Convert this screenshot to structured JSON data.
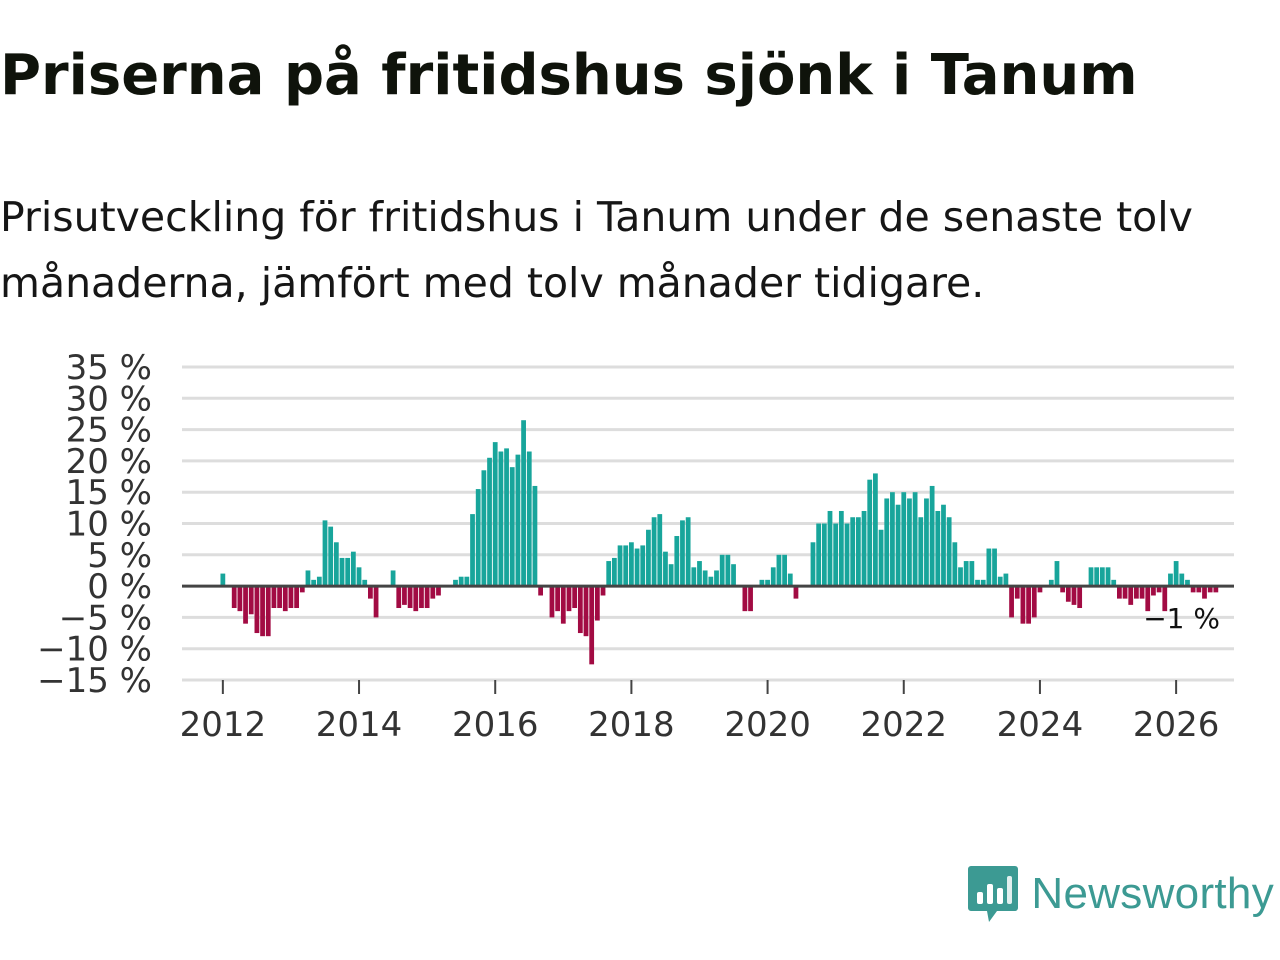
{
  "header": {
    "title": "Priserna på fritidshus sjönk i Tanum",
    "subtitle": "Prisutveckling för fritidshus i Tanum under de senaste tolv månaderna, jämfört med tolv månader tidigare."
  },
  "brand": {
    "name": "Newsworthy",
    "icon": "newsworthy-logo-icon",
    "color": "#3c9a93"
  },
  "colors": {
    "positive": "#18a59b",
    "negative": "#a20b43",
    "grid": "#dddddd",
    "zero": "#444444",
    "text": "#333333"
  },
  "chart_data": {
    "type": "bar",
    "title": "Priserna på fritidshus sjönk i Tanum",
    "xlabel": "",
    "ylabel": "",
    "unit": "%",
    "ylim": [
      -15,
      35
    ],
    "yticks": [
      35,
      30,
      25,
      20,
      15,
      10,
      5,
      0,
      -5,
      -10,
      -15
    ],
    "ytick_labels": [
      "35 %",
      "30 %",
      "25 %",
      "20 %",
      "15 %",
      "10 %",
      "5 %",
      "0 %",
      "−5 %",
      "−10 %",
      "−15 %"
    ],
    "xlim": [
      2011.4,
      2026.85
    ],
    "xticks": [
      2012,
      2014,
      2016,
      2018,
      2020,
      2022,
      2024,
      2026
    ],
    "xtick_labels": [
      "2012",
      "2014",
      "2016",
      "2018",
      "2020",
      "2022",
      "2024",
      "2026"
    ],
    "grid": true,
    "last_value_label": "−1 %",
    "series": [
      {
        "name": "Prisutveckling",
        "start": "2012-01",
        "values": [
          2,
          null,
          -3.5,
          -4,
          -6,
          -4.5,
          -7.5,
          -8,
          -8,
          -3.5,
          -3.5,
          -4,
          -3.5,
          -3.5,
          -1,
          2.5,
          1,
          1.5,
          10.5,
          9.5,
          7,
          4.5,
          4.5,
          5.5,
          3,
          1,
          -2,
          -5,
          null,
          null,
          2.5,
          -3.5,
          -3,
          -3.5,
          -4,
          -3.5,
          -3.5,
          -2,
          -1.5,
          null,
          null,
          1,
          1.5,
          1.5,
          11.5,
          15.5,
          18.5,
          20.5,
          23,
          21.5,
          22,
          19,
          21,
          26.5,
          21.5,
          16,
          -1.5,
          null,
          -5,
          -4,
          -6,
          -4,
          -3.5,
          -7.5,
          -8,
          -12.5,
          -5.5,
          -1.5,
          4,
          4.5,
          6.5,
          6.5,
          7,
          6,
          6.5,
          9,
          11,
          11.5,
          5.5,
          3.5,
          8,
          10.5,
          11,
          3,
          4,
          2.5,
          1.5,
          2.5,
          5,
          5,
          3.5,
          null,
          -4,
          -4,
          null,
          1,
          1,
          3,
          5,
          5,
          2,
          -2,
          null,
          null,
          7,
          10,
          10,
          12,
          10,
          12,
          10,
          11,
          11,
          12,
          17,
          18,
          9,
          14,
          15,
          13,
          15,
          14,
          15,
          11,
          14,
          16,
          12,
          13,
          11,
          7,
          3,
          4,
          4,
          1,
          1,
          6,
          6,
          1.5,
          2,
          -5,
          -2,
          -6,
          -6,
          -5,
          -1,
          null,
          1,
          4,
          -1,
          -2.5,
          -3,
          -3.5,
          null,
          3,
          3,
          3,
          3,
          1,
          -2,
          -2,
          -3,
          -2,
          -2,
          -4,
          -1.5,
          -1,
          -4,
          2,
          4,
          2,
          1,
          -1,
          -1,
          -2,
          -1,
          -1
        ]
      }
    ]
  }
}
